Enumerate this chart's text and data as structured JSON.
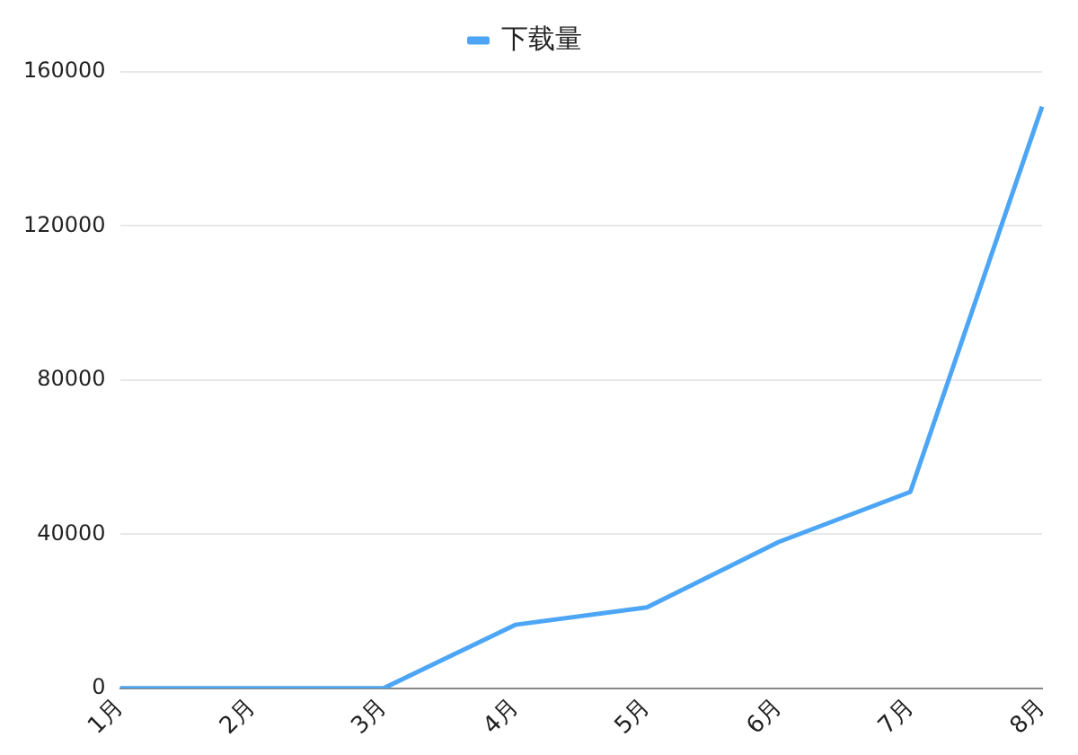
{
  "chart_data": {
    "type": "line",
    "categories": [
      "1月",
      "2月",
      "3月",
      "4月",
      "5月",
      "6月",
      "7月",
      "8月"
    ],
    "series": [
      {
        "name": "下载量",
        "color": "#4da6f5",
        "values": [
          0,
          0,
          0,
          16500,
          21000,
          38000,
          51000,
          151000
        ]
      }
    ],
    "ylim": [
      0,
      160000
    ],
    "yticks": [
      0,
      40000,
      80000,
      120000,
      160000
    ],
    "grid": "y",
    "legend": "top",
    "marker": "none",
    "line_style": "solid"
  }
}
